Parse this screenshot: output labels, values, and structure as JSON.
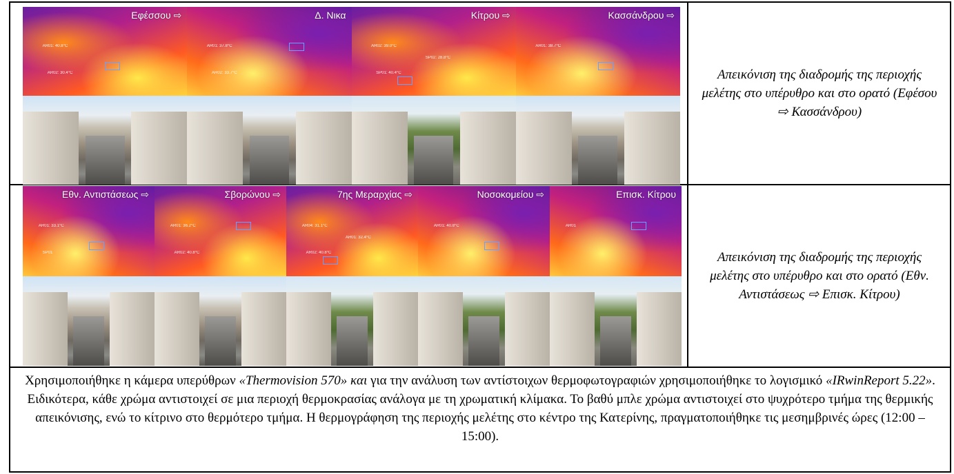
{
  "rows": [
    {
      "photos": [
        {
          "label": "Εφέσσου ⇨",
          "annotations": [
            "AR01: 40.8°C",
            "AR02: 30.4°C"
          ],
          "style": "a",
          "scene": "buildings"
        },
        {
          "label": "Δ. Νικα",
          "annotations": [
            "AR01: 37.8°C",
            "AR02: 33.7°C"
          ],
          "style": "b",
          "scene": "buildings"
        },
        {
          "label": "Κίτρου ⇨",
          "annotations": [
            "AR02: 39.0°C",
            "SP01: 40.4°C",
            "SP02: 28.8°C"
          ],
          "style": "a",
          "scene": "green"
        },
        {
          "label": "Κασσάνδρου ⇨",
          "annotations": [
            "AR01: 38.7°C"
          ],
          "style": "b",
          "scene": "buildings"
        }
      ],
      "description": "Απεικόνιση της διαδρομής της περιοχής μελέτης στο υπέρυθρο και στο ορατό (Εφέσου ⇨ Κασσάνδρου)"
    },
    {
      "photos": [
        {
          "label": "Εθν. Αντιστάσεως ⇨",
          "annotations": [
            "AR01: 33.1°C",
            "SP01"
          ],
          "style": "b",
          "scene": "buildings"
        },
        {
          "label": "Σβορώνου ⇨",
          "annotations": [
            "AR01: 36.2°C",
            "AR02: 40.8°C"
          ],
          "style": "a",
          "scene": "buildings"
        },
        {
          "label": "7ης Μεραρχίας ⇨",
          "annotations": [
            "AR04: 31.1°C",
            "AR02: 40.8°C",
            "AR01: 32.4°C"
          ],
          "style": "a",
          "scene": "green"
        },
        {
          "label": "Νοσοκομείου ⇨",
          "annotations": [
            "AR01: 40.8°C"
          ],
          "style": "b",
          "scene": "green"
        },
        {
          "label": "Επισκ. Κίτρου",
          "annotations": [
            "AR01"
          ],
          "style": "b",
          "scene": "green"
        }
      ],
      "description": "Απεικόνιση της διαδρομής της περιοχής μελέτης στο υπέρυθρο και στο ορατό (Εθν. Αντιστάσεως ⇨ Επισκ. Κίτρου)"
    }
  ],
  "caption": {
    "t1": "Χρησιμοποιήθηκε η κάμερα υπερύθρων ",
    "camera": "«Thermovision 570» και",
    "t2": " για την ανάλυση των αντίστοιχων θερμοφωτογραφιών χρησιμοποιήθηκε το λογισμικό ",
    "software": "«IRwinReport 5.22»",
    "t3": ". Ειδικότερα, κάθε χρώμα αντιστοιχεί σε μια περιοχή θερμοκρασίας ανάλογα με τη χρωματική κλίμακα. Το βαθύ μπλε χρώμα αντιστοιχεί στο ψυχρότερο τμήμα της θερμικής απεικόνισης, ενώ το κίτρινο στο θερμότερο τμήμα. Η θερμογράφηση της περιοχής μελέτης στο κέντρο της Κατερίνης, πραγματοποιήθηκε τις μεσημβρινές ώρες (12:00 – 15:00)."
  }
}
